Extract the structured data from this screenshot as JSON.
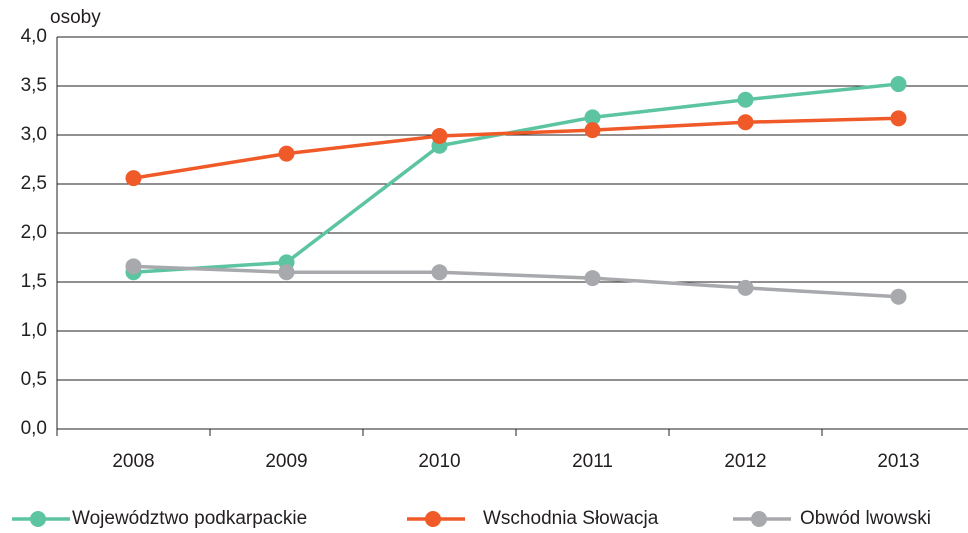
{
  "chart_data": {
    "type": "line",
    "y_label": "osoby",
    "categories": [
      "2008",
      "2009",
      "2010",
      "2011",
      "2012",
      "2013"
    ],
    "series": [
      {
        "name": "Województwo podkarpackie",
        "color": "#5cc4a0",
        "values": [
          1.6,
          1.7,
          2.89,
          3.18,
          3.36,
          3.52
        ]
      },
      {
        "name": "Wschodnia Słowacja",
        "color": "#ef5a28",
        "values": [
          2.56,
          2.81,
          2.99,
          3.05,
          3.13,
          3.17
        ]
      },
      {
        "name": "Obwód lwowski",
        "color": "#a7a9ac",
        "values": [
          1.66,
          1.6,
          1.6,
          1.54,
          1.44,
          1.35
        ]
      }
    ],
    "ylim": [
      0,
      4
    ],
    "yticks": [
      {
        "value": 0,
        "label": "0,0"
      },
      {
        "value": 0.5,
        "label": "0,5"
      },
      {
        "value": 1,
        "label": "1,0"
      },
      {
        "value": 1.5,
        "label": "1,5"
      },
      {
        "value": 2,
        "label": "2,0"
      },
      {
        "value": 2.5,
        "label": "2,5"
      },
      {
        "value": 3,
        "label": "3,0"
      },
      {
        "value": 3.5,
        "label": "3,5"
      },
      {
        "value": 4,
        "label": "4,0"
      }
    ],
    "grid": true,
    "legend": "bottom"
  }
}
